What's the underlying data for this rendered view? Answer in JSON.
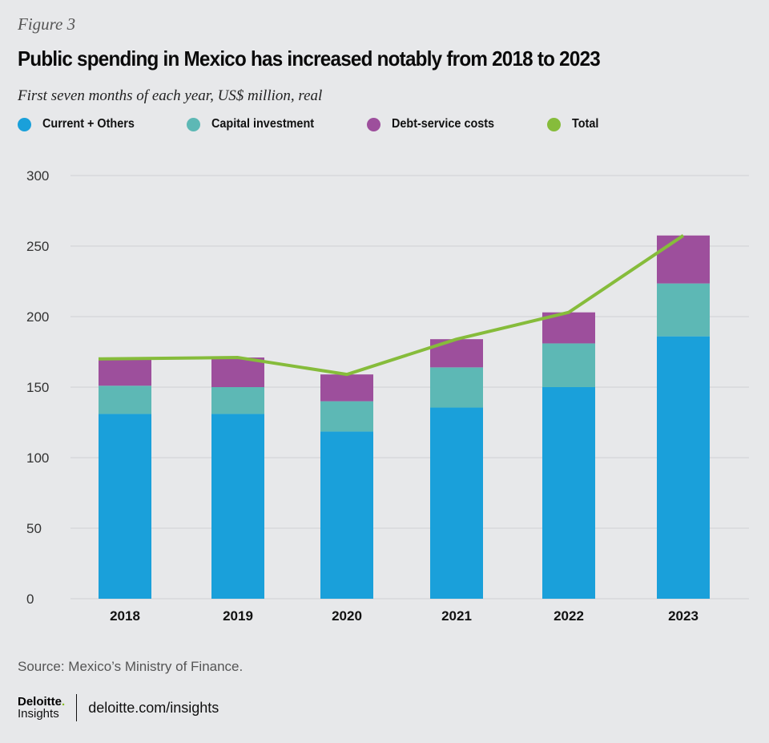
{
  "header": {
    "figure_label": "Figure 3",
    "title": "Public spending in Mexico has increased notably from 2018 to 2023",
    "subtitle": "First seven months of each year, US$ million, real"
  },
  "legend": [
    {
      "label": "Current + Others",
      "color": "#1aa0da"
    },
    {
      "label": "Capital investment",
      "color": "#5db8b5"
    },
    {
      "label": "Debt-service costs",
      "color": "#9d4f9c"
    },
    {
      "label": "Total",
      "color": "#86bc3b"
    }
  ],
  "chart_data": {
    "type": "bar",
    "stacked": true,
    "title": "Public spending in Mexico has increased notably from 2018 to 2023",
    "subtitle": "First seven months of each year, US$ million, real",
    "xlabel": "",
    "ylabel": "",
    "categories": [
      "2018",
      "2019",
      "2020",
      "2021",
      "2022",
      "2023"
    ],
    "ylim": [
      0,
      300
    ],
    "yticks": [
      0,
      50,
      100,
      150,
      200,
      250,
      300
    ],
    "grid": true,
    "legend_position": "top-left",
    "series": [
      {
        "name": "Current + Others",
        "type": "bar",
        "color": "#1aa0da",
        "values": [
          131,
          131,
          118.5,
          135.5,
          150,
          186
        ]
      },
      {
        "name": "Capital investment",
        "type": "bar",
        "color": "#5db8b5",
        "values": [
          20,
          19,
          21.5,
          28.5,
          31,
          37.5
        ]
      },
      {
        "name": "Debt-service costs",
        "type": "bar",
        "color": "#9d4f9c",
        "values": [
          19,
          21,
          19,
          20,
          22,
          34
        ]
      },
      {
        "name": "Total",
        "type": "line",
        "color": "#86bc3b",
        "values": [
          170,
          171,
          159,
          184,
          203,
          257.5
        ]
      }
    ]
  },
  "footer": {
    "source": "Source: Mexico’s Ministry of Finance.",
    "logo_top": "Deloitte",
    "logo_dot": ".",
    "logo_bottom": "Insights",
    "url": "deloitte.com/insights"
  }
}
